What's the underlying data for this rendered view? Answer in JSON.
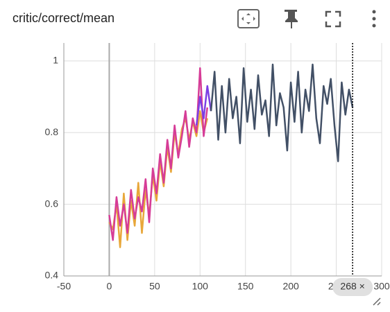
{
  "chart_data": {
    "type": "line",
    "title": "critic/correct/mean",
    "xlim": [
      -50,
      300
    ],
    "xticks": [
      -50,
      0,
      50,
      100,
      150,
      200,
      250,
      300
    ],
    "ylim": [
      0.4,
      1.05
    ],
    "yticks": [
      0.4,
      0.6,
      0.8,
      1
    ],
    "grid": true,
    "cursor": {
      "value": 268,
      "label": "268 ×"
    },
    "series": [
      {
        "color": "#e8a73a",
        "x": [
          0,
          4,
          8,
          12,
          16,
          20,
          24,
          28,
          32,
          36,
          40,
          44,
          48,
          52,
          56,
          60,
          64,
          68,
          72,
          76,
          80,
          84,
          88,
          92,
          96,
          100,
          104,
          108
        ],
        "values": [
          0.55,
          0.53,
          0.6,
          0.48,
          0.63,
          0.5,
          0.61,
          0.54,
          0.66,
          0.52,
          0.64,
          0.57,
          0.68,
          0.61,
          0.72,
          0.65,
          0.76,
          0.69,
          0.8,
          0.74,
          0.81,
          0.84,
          0.78,
          0.83,
          0.79,
          0.86,
          0.8,
          0.84
        ]
      },
      {
        "color": "#d63c97",
        "x": [
          0,
          4,
          8,
          12,
          16,
          20,
          24,
          28,
          32,
          36,
          40,
          44,
          48,
          52,
          56,
          60,
          64,
          68,
          72,
          76,
          80,
          84,
          88,
          92,
          96,
          100,
          104,
          108
        ],
        "values": [
          0.57,
          0.5,
          0.62,
          0.54,
          0.6,
          0.52,
          0.64,
          0.56,
          0.62,
          0.58,
          0.67,
          0.55,
          0.7,
          0.63,
          0.74,
          0.66,
          0.78,
          0.7,
          0.82,
          0.73,
          0.79,
          0.86,
          0.76,
          0.84,
          0.8,
          0.98,
          0.79,
          0.87
        ]
      },
      {
        "color": "#7b3fe4",
        "x": [
          96,
          100,
          104,
          108,
          112
        ],
        "values": [
          0.82,
          0.9,
          0.84,
          0.93,
          0.86
        ]
      },
      {
        "color": "#425066",
        "x": [
          112,
          116,
          120,
          124,
          128,
          132,
          136,
          140,
          144,
          148,
          152,
          156,
          160,
          164,
          168,
          172,
          176,
          180,
          184,
          188,
          192,
          196,
          200,
          204,
          208,
          212,
          216,
          220,
          224,
          228,
          232,
          236,
          240,
          244,
          248,
          252,
          256,
          260,
          264,
          268
        ],
        "values": [
          0.86,
          0.97,
          0.78,
          0.93,
          0.8,
          0.95,
          0.84,
          0.9,
          0.77,
          0.98,
          0.83,
          0.92,
          0.81,
          0.96,
          0.85,
          0.89,
          0.79,
          0.99,
          0.82,
          0.91,
          0.87,
          0.75,
          0.94,
          0.83,
          0.97,
          0.8,
          0.92,
          0.86,
          0.99,
          0.84,
          0.77,
          0.93,
          0.88,
          0.95,
          0.82,
          0.72,
          0.94,
          0.85,
          0.92,
          0.87
        ]
      }
    ]
  }
}
